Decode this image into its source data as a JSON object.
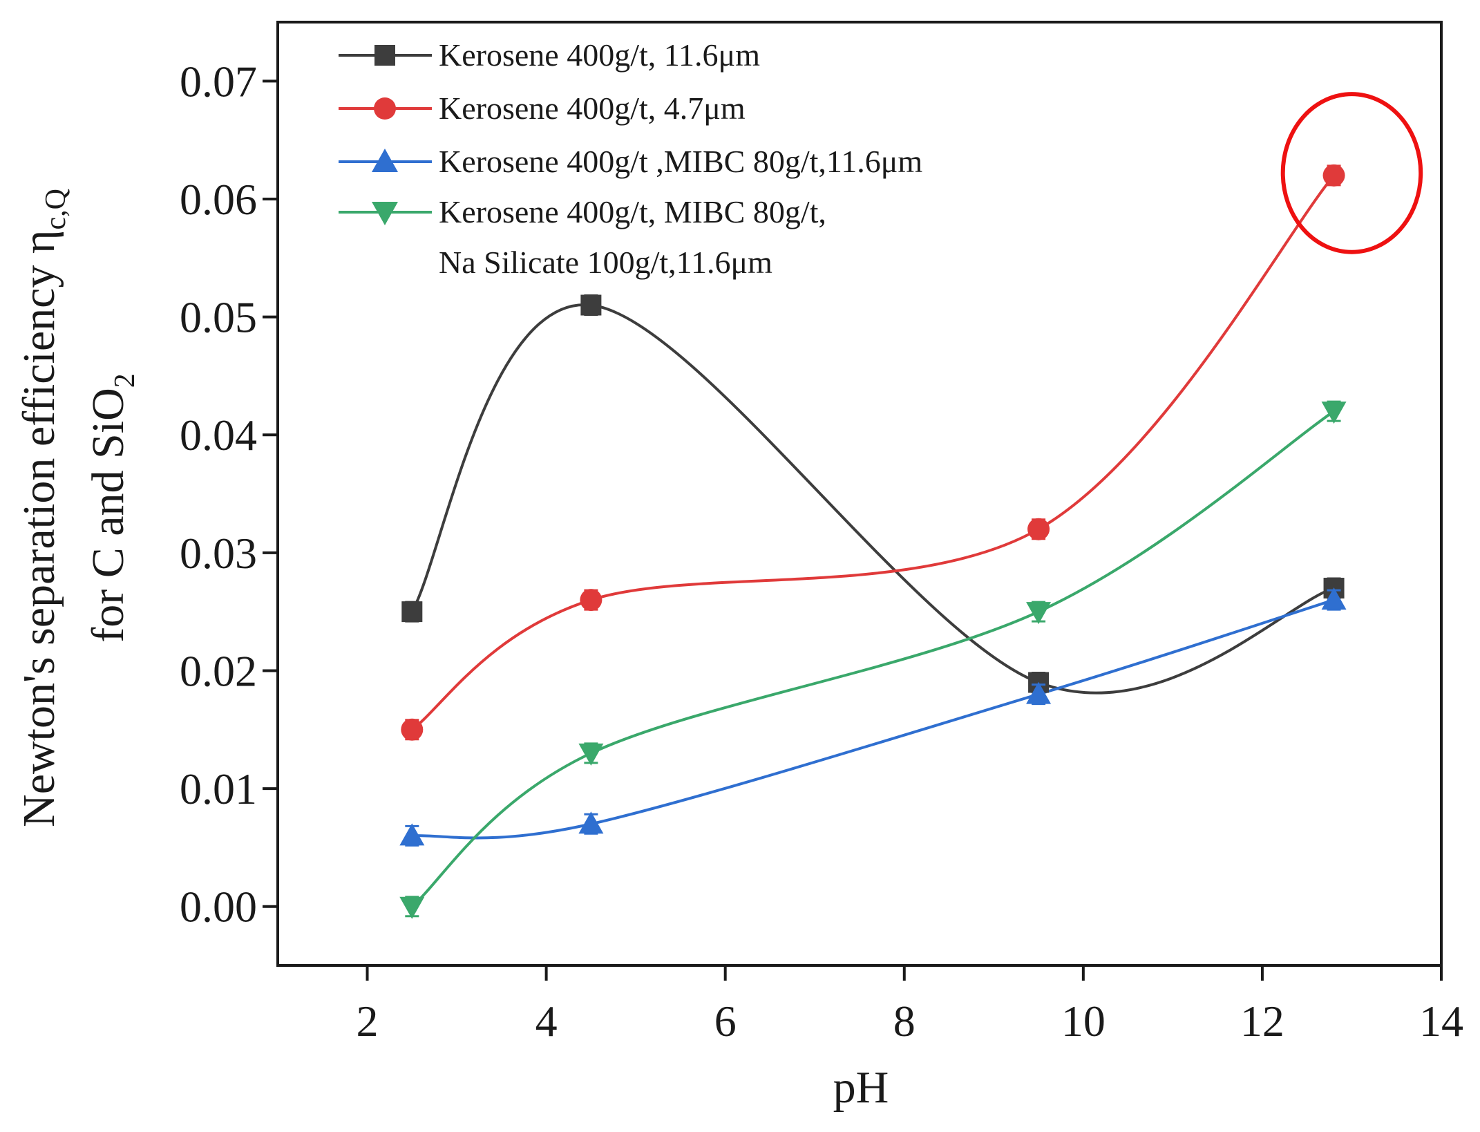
{
  "chart_data": {
    "type": "line",
    "xlabel": "pH",
    "ylabel_line1": "Newton's separation efficiency η",
    "ylabel_sub1": "c,Q",
    "ylabel_line2": "for C and SiO",
    "ylabel_sub2": "2",
    "xlim": [
      1,
      14
    ],
    "ylim": [
      -0.005,
      0.075
    ],
    "xticks": [
      2,
      4,
      6,
      8,
      10,
      12,
      14
    ],
    "xtick_labels": [
      "2",
      "4",
      "6",
      "8",
      "10",
      "12",
      "14"
    ],
    "yticks": [
      0.0,
      0.01,
      0.02,
      0.03,
      0.04,
      0.05,
      0.06,
      0.07
    ],
    "ytick_labels": [
      "0.00",
      "0.01",
      "0.02",
      "0.03",
      "0.04",
      "0.05",
      "0.06",
      "0.07"
    ],
    "legend_position": "top-left",
    "series": [
      {
        "name": "Kerosene 400g/t, 11.6μm",
        "marker": "square",
        "color": "#3d3d3d",
        "x": [
          2.5,
          4.5,
          9.5,
          12.8
        ],
        "values": [
          0.025,
          0.051,
          0.019,
          0.027
        ]
      },
      {
        "name": "Kerosene 400g/t, 4.7μm",
        "marker": "circle",
        "color": "#e03a3a",
        "x": [
          2.5,
          4.5,
          9.5,
          12.8
        ],
        "values": [
          0.015,
          0.026,
          0.032,
          0.062
        ]
      },
      {
        "name": "Kerosene 400g/t ,MIBC 80g/t,11.6μm",
        "marker": "triangle-up",
        "color": "#2f6fd0",
        "x": [
          2.5,
          4.5,
          9.5,
          12.8
        ],
        "values": [
          0.006,
          0.007,
          0.018,
          0.026
        ]
      },
      {
        "name": "Kerosene 400g/t, MIBC 80g/t,",
        "name_line2": "Na Silicate 100g/t,11.6μm",
        "marker": "triangle-down",
        "color": "#3aa86b",
        "x": [
          2.5,
          4.5,
          9.5,
          12.8
        ],
        "values": [
          0.0,
          0.013,
          0.025,
          0.042
        ]
      }
    ],
    "annotation": {
      "type": "circle",
      "color": "#ee1111",
      "x": 13.0,
      "y": 0.0622,
      "rx_data": 0.77,
      "ry_data": 0.0067
    }
  }
}
